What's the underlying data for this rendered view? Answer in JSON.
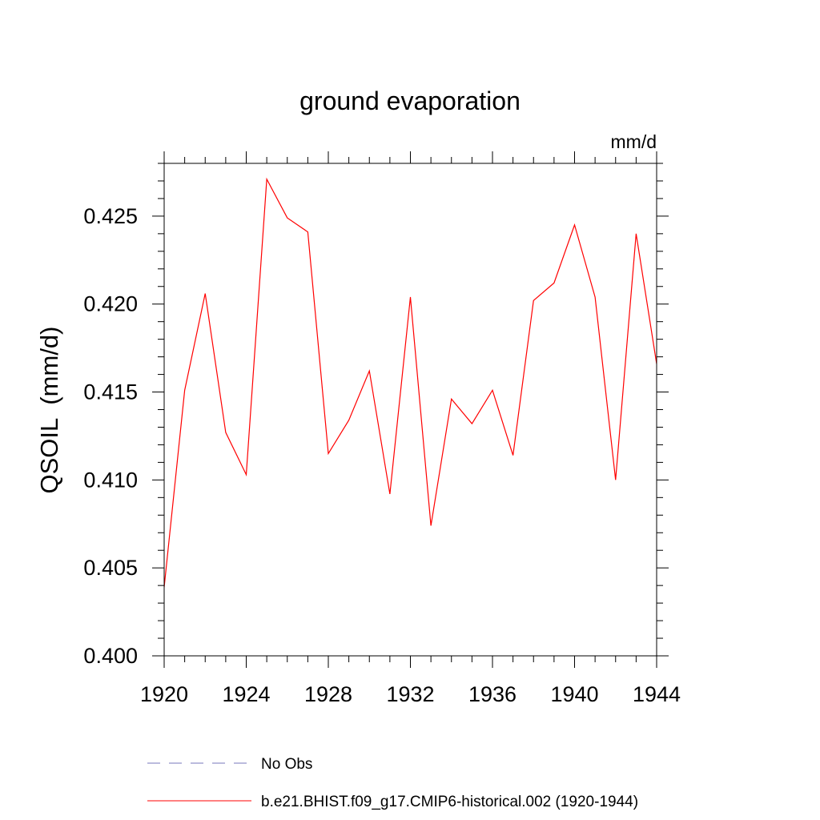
{
  "chart_data": {
    "type": "line",
    "title": "ground evaporation",
    "units_label": "mm/d",
    "ylabel": "QSOIL  (mm/d)",
    "xlabel": "",
    "xlim": [
      1920,
      1944
    ],
    "ylim": [
      0.4,
      0.428
    ],
    "x_ticks": [
      1920,
      1924,
      1928,
      1932,
      1936,
      1940,
      1944
    ],
    "x_tick_labels": [
      "1920",
      "1924",
      "1928",
      "1932",
      "1936",
      "1940",
      "1944"
    ],
    "y_ticks": [
      0.4,
      0.405,
      0.41,
      0.415,
      0.42,
      0.425
    ],
    "y_tick_labels": [
      "0.400",
      "0.405",
      "0.410",
      "0.415",
      "0.420",
      "0.425"
    ],
    "grid": false,
    "legend_position": "bottom",
    "series": [
      {
        "name": "b.e21.BHIST.f09_g17.CMIP6-historical.002 (1920-1944)",
        "color": "#ff0000",
        "x": [
          1920,
          1921,
          1922,
          1923,
          1924,
          1925,
          1926,
          1927,
          1928,
          1929,
          1930,
          1931,
          1932,
          1933,
          1934,
          1935,
          1936,
          1937,
          1938,
          1939,
          1940,
          1941,
          1942,
          1943,
          1944
        ],
        "y": [
          0.4039,
          0.4151,
          0.4206,
          0.4127,
          0.4103,
          0.4271,
          0.4249,
          0.4241,
          0.4115,
          0.4134,
          0.4162,
          0.4092,
          0.4204,
          0.4074,
          0.4146,
          0.4132,
          0.4151,
          0.4114,
          0.4202,
          0.4212,
          0.4245,
          0.4204,
          0.41,
          0.424,
          0.4166
        ]
      }
    ],
    "legend": [
      {
        "label": "No Obs",
        "color": "#7777bb",
        "style": "dashed"
      },
      {
        "label": "b.e21.BHIST.f09_g17.CMIP6-historical.002 (1920-1944)",
        "color": "#ff0000",
        "style": "solid"
      }
    ]
  }
}
